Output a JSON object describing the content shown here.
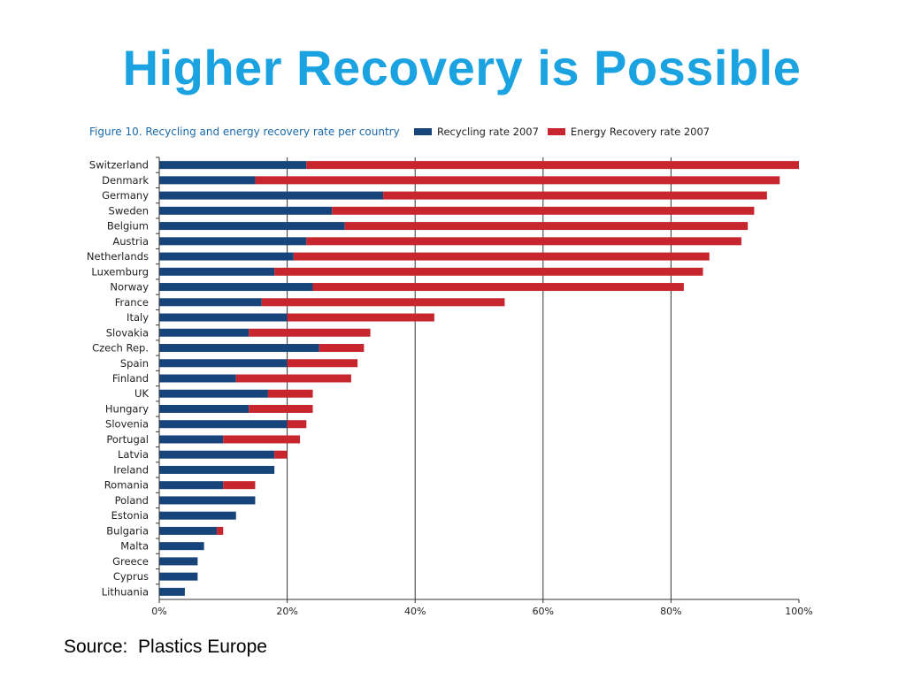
{
  "slide": {
    "title": "Higher Recovery is Possible",
    "source": "Source:  Plastics Europe"
  },
  "colors": {
    "title": "#1aa3e0",
    "caption": "#1b6aa8",
    "recycling": "#17447a",
    "energy": "#c8262e"
  },
  "chart_data": {
    "type": "bar",
    "orientation": "horizontal",
    "stacked": true,
    "title": "Figure 10. Recycling and energy recovery rate per country",
    "categories": [
      "Switzerland",
      "Denmark",
      "Germany",
      "Sweden",
      "Belgium",
      "Austria",
      "Netherlands",
      "Luxemburg",
      "Norway",
      "France",
      "Italy",
      "Slovakia",
      "Czech Rep.",
      "Spain",
      "Finland",
      "UK",
      "Hungary",
      "Slovenia",
      "Portugal",
      "Latvia",
      "Ireland",
      "Romania",
      "Poland",
      "Estonia",
      "Bulgaria",
      "Malta",
      "Greece",
      "Cyprus",
      "Lithuania"
    ],
    "series": [
      {
        "name": "Recycling  rate 2007",
        "color": "#17447a",
        "values": [
          23,
          15,
          35,
          27,
          29,
          23,
          21,
          18,
          24,
          16,
          20,
          14,
          25,
          20,
          12,
          17,
          14,
          20,
          10,
          18,
          18,
          10,
          15,
          12,
          9,
          7,
          6,
          6,
          4
        ]
      },
      {
        "name": "Energy Recovery rate 2007",
        "color": "#c8262e",
        "values": [
          77,
          82,
          60,
          66,
          63,
          68,
          65,
          67,
          58,
          38,
          23,
          19,
          7,
          11,
          18,
          7,
          10,
          3,
          12,
          2,
          0,
          5,
          0,
          0,
          1,
          0,
          0,
          0,
          0
        ]
      }
    ],
    "xlim": [
      0,
      100
    ],
    "xticks": [
      "0%",
      "20%",
      "40%",
      "60%",
      "80%",
      "100%"
    ],
    "grid": "vertical",
    "legend": "top"
  }
}
